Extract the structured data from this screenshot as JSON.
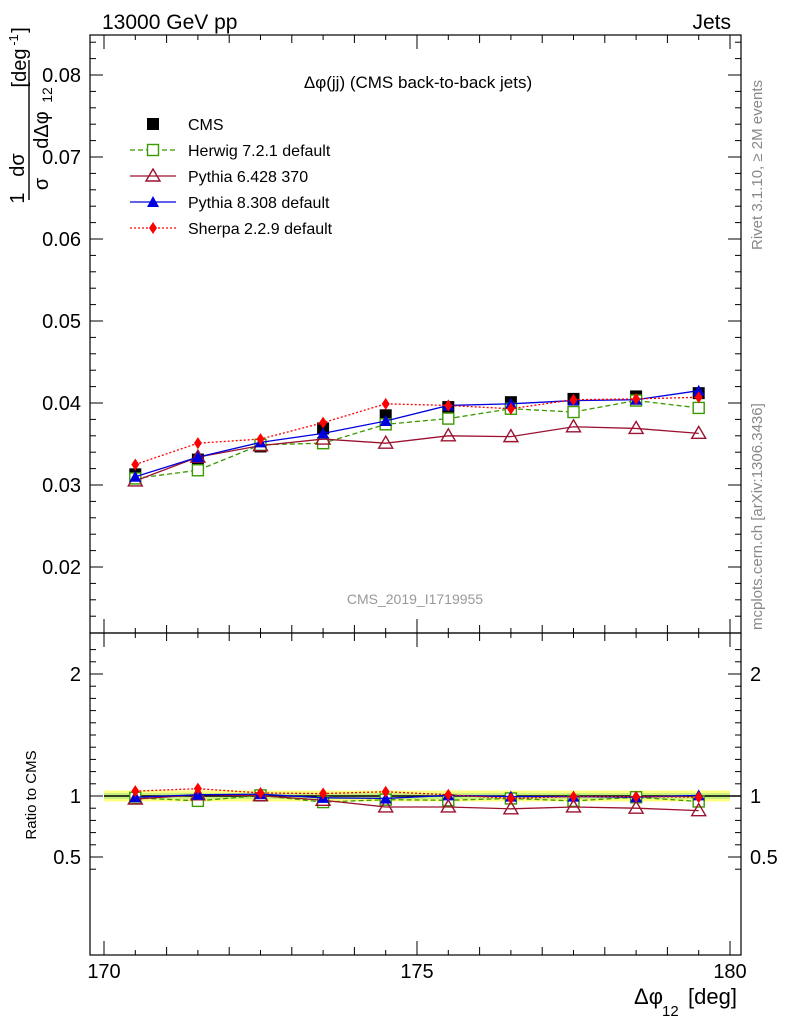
{
  "header": {
    "left": "13000 GeV pp",
    "right": "Jets"
  },
  "side_labels": {
    "rivet": "Rivet 3.1.10, ≥ 2M events",
    "mcplots": "mcplots.cern.ch [arXiv:1306.3436]"
  },
  "watermark": "CMS_2019_I1719955",
  "colors": {
    "cms": "#000000",
    "herwig": "#3a9a00",
    "pythia6": "#9b1330",
    "pythia8": "#0000dd",
    "sherpa": "#ff0000",
    "band_yellow": "#ffff80",
    "band_green": "#c8f080"
  },
  "chart_data": [
    {
      "type": "line",
      "title": "Δφ(jj) (CMS back-to-back jets)",
      "ylabel": "1/σ dσ/dΔφ12 [deg⁻¹]",
      "xlabel": "",
      "xlim": [
        170,
        180
      ],
      "ylim": [
        0.0125,
        0.085
      ],
      "yticks": [
        "0.02",
        "0.03",
        "0.04",
        "0.05",
        "0.06",
        "0.07",
        "0.08"
      ],
      "x": [
        170.5,
        171.5,
        172.5,
        173.5,
        174.5,
        175.5,
        176.5,
        177.5,
        178.5,
        179.5
      ],
      "legend_position": "top-left",
      "series": [
        {
          "name": "CMS",
          "key": "cms",
          "marker": "square-filled",
          "line": "none",
          "values": [
            0.0313,
            0.0331,
            0.0347,
            0.0369,
            0.0385,
            0.0395,
            0.0401,
            0.0405,
            0.0408,
            0.0412
          ]
        },
        {
          "name": "Herwig 7.2.1 default",
          "key": "herwig",
          "marker": "square-open",
          "line": "dashed",
          "values": [
            0.0308,
            0.0318,
            0.0349,
            0.0351,
            0.0374,
            0.0381,
            0.0393,
            0.0389,
            0.0403,
            0.0394
          ]
        },
        {
          "name": "Pythia 6.428 370",
          "key": "pythia6",
          "marker": "triangle-open",
          "line": "solid",
          "values": [
            0.0305,
            0.0334,
            0.0348,
            0.0356,
            0.0351,
            0.036,
            0.0359,
            0.0371,
            0.0369,
            0.0363
          ]
        },
        {
          "name": "Pythia 8.308 default",
          "key": "pythia8",
          "marker": "triangle-filled",
          "line": "solid",
          "values": [
            0.031,
            0.0334,
            0.0352,
            0.0363,
            0.0378,
            0.0397,
            0.0399,
            0.0403,
            0.0404,
            0.0415
          ]
        },
        {
          "name": "Sherpa 2.2.9 default",
          "key": "sherpa",
          "marker": "diamond-filled",
          "line": "dotted",
          "values": [
            0.0325,
            0.0351,
            0.0356,
            0.0376,
            0.0399,
            0.0397,
            0.0393,
            0.0404,
            0.0405,
            0.0407
          ]
        }
      ]
    },
    {
      "type": "line",
      "ylabel": "Ratio to CMS",
      "xlabel": "Δφ12 [deg]",
      "xlim": [
        170,
        180
      ],
      "ylim": [
        0.3,
        2.3
      ],
      "yticks": [
        "0.5",
        "1",
        "2"
      ],
      "xticks": [
        "170",
        "175",
        "180"
      ],
      "x": [
        170.5,
        171.5,
        172.5,
        173.5,
        174.5,
        175.5,
        176.5,
        177.5,
        178.5,
        179.5
      ],
      "band": {
        "yellow_half": 0.045,
        "green_half": 0.025
      },
      "series": [
        {
          "name": "Herwig 7.2.1 default",
          "key": "herwig",
          "marker": "square-open",
          "line": "dashed",
          "values": [
            0.985,
            0.96,
            1.005,
            0.95,
            0.97,
            0.965,
            0.98,
            0.96,
            0.99,
            0.955
          ]
        },
        {
          "name": "Pythia 6.428 370",
          "key": "pythia6",
          "marker": "triangle-open",
          "line": "solid",
          "values": [
            0.975,
            1.01,
            1.003,
            0.965,
            0.91,
            0.91,
            0.895,
            0.91,
            0.9,
            0.88
          ]
        },
        {
          "name": "Pythia 8.308 default",
          "key": "pythia8",
          "marker": "triangle-filled",
          "line": "solid",
          "values": [
            0.99,
            1.01,
            1.015,
            0.985,
            0.98,
            1.005,
            0.995,
            0.995,
            0.99,
            1.005
          ]
        },
        {
          "name": "Sherpa 2.2.9 default",
          "key": "sherpa",
          "marker": "diamond-filled",
          "line": "dotted",
          "values": [
            1.04,
            1.06,
            1.025,
            1.02,
            1.035,
            1.01,
            0.98,
            0.995,
            0.995,
            0.99
          ]
        }
      ]
    }
  ]
}
